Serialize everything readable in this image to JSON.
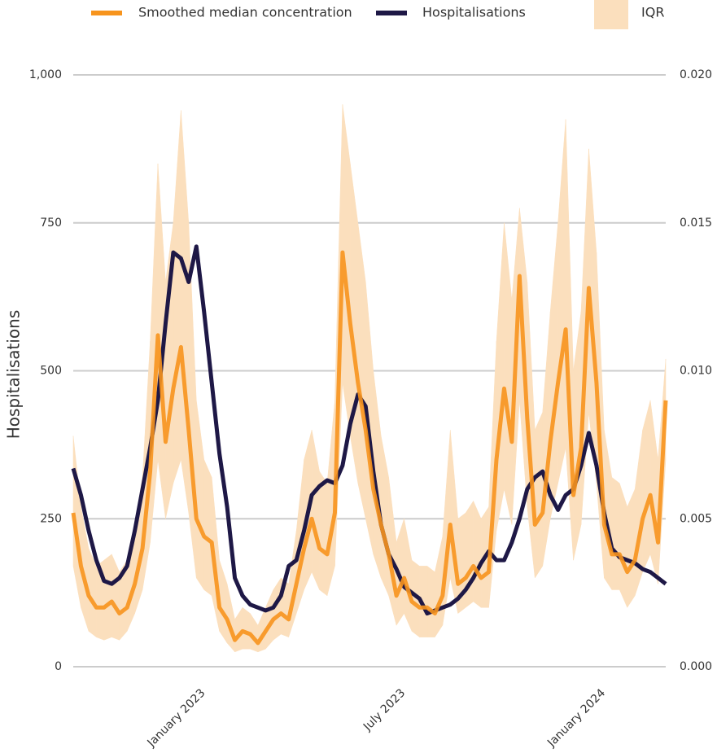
{
  "chart_data": {
    "type": "line",
    "ylabel": "Hospitalisations",
    "categories": [
      null,
      null,
      null,
      null,
      null,
      null,
      null,
      null,
      null,
      null,
      null,
      null,
      null,
      null,
      null,
      "January 2023",
      null,
      null,
      null,
      null,
      null,
      null,
      null,
      null,
      null,
      null,
      null,
      null,
      null,
      null,
      null,
      null,
      null,
      null,
      null,
      null,
      null,
      null,
      null,
      null,
      null,
      "July 2023",
      null,
      null,
      null,
      null,
      null,
      null,
      null,
      null,
      null,
      null,
      null,
      null,
      null,
      null,
      null,
      null,
      null,
      null,
      null,
      null,
      null,
      null,
      null,
      null,
      null,
      "January 2024",
      null,
      null,
      null,
      null,
      null,
      null,
      null,
      null,
      null,
      null
    ],
    "ylim": [
      0,
      1000
    ],
    "yticks": [
      0,
      250,
      500,
      750,
      {
        "value": 1000,
        "label": "1,000"
      }
    ],
    "y2lim": [
      0,
      0.02
    ],
    "y2ticks": [
      {
        "value": 0,
        "label": "0.000"
      },
      {
        "value": 0.005,
        "label": "0.005"
      },
      {
        "value": 0.01,
        "label": "0.010"
      },
      {
        "value": 0.015,
        "label": "0.015"
      },
      {
        "value": 0.02,
        "label": "0.020"
      }
    ],
    "grid": true,
    "iqr": {
      "name": "IQR",
      "color": "#fbdfbd",
      "axis": "y2",
      "low": [
        0.0034,
        0.002,
        0.0012,
        0.001,
        0.0009,
        0.001,
        0.0009,
        0.0012,
        0.0018,
        0.0026,
        0.0042,
        0.007,
        0.005,
        0.0062,
        0.007,
        0.0052,
        0.003,
        0.0026,
        0.0024,
        0.0012,
        0.0008,
        0.0005,
        0.0006,
        0.0006,
        0.0005,
        0.0006,
        0.0009,
        0.0011,
        0.001,
        0.0018,
        0.0026,
        0.0032,
        0.0026,
        0.0024,
        0.0034,
        0.0096,
        0.0078,
        0.0062,
        0.005,
        0.0038,
        0.003,
        0.0024,
        0.0014,
        0.0018,
        0.0012,
        0.001,
        0.001,
        0.001,
        0.0014,
        0.003,
        0.0018,
        0.002,
        0.0022,
        0.002,
        0.002,
        0.0046,
        0.006,
        0.0048,
        0.009,
        0.0054,
        0.003,
        0.0034,
        0.005,
        0.0062,
        0.0074,
        0.0036,
        0.0048,
        0.0086,
        0.0062,
        0.003,
        0.0026,
        0.0026,
        0.002,
        0.0024,
        0.0032,
        0.0038,
        0.0028,
        0.007
      ],
      "high": [
        0.0078,
        0.0054,
        0.004,
        0.0034,
        0.0036,
        0.0038,
        0.0032,
        0.0036,
        0.0048,
        0.0064,
        0.011,
        0.017,
        0.013,
        0.015,
        0.0188,
        0.015,
        0.009,
        0.007,
        0.0064,
        0.0036,
        0.0028,
        0.0016,
        0.002,
        0.0018,
        0.0014,
        0.002,
        0.0026,
        0.003,
        0.0028,
        0.0046,
        0.007,
        0.008,
        0.0066,
        0.0062,
        0.009,
        0.019,
        0.017,
        0.015,
        0.013,
        0.01,
        0.0078,
        0.0064,
        0.0042,
        0.005,
        0.0036,
        0.0034,
        0.0034,
        0.0032,
        0.0044,
        0.008,
        0.005,
        0.0052,
        0.0056,
        0.005,
        0.0054,
        0.011,
        0.015,
        0.0124,
        0.0155,
        0.013,
        0.008,
        0.0086,
        0.012,
        0.015,
        0.0185,
        0.01,
        0.012,
        0.0175,
        0.014,
        0.008,
        0.0064,
        0.0062,
        0.0054,
        0.006,
        0.008,
        0.009,
        0.007,
        0.0104
      ]
    },
    "series": [
      {
        "name": "Smoothed median concentration",
        "color": "#f7941d",
        "axis": "y2",
        "values": [
          0.0052,
          0.0034,
          0.0024,
          0.002,
          0.002,
          0.0022,
          0.0018,
          0.002,
          0.0028,
          0.004,
          0.0066,
          0.0112,
          0.0076,
          0.0094,
          0.0108,
          0.008,
          0.005,
          0.0044,
          0.0042,
          0.002,
          0.0016,
          0.0009,
          0.0012,
          0.0011,
          0.0008,
          0.0012,
          0.0016,
          0.0018,
          0.0016,
          0.0028,
          0.004,
          0.005,
          0.004,
          0.0038,
          0.0052,
          0.014,
          0.0116,
          0.0096,
          0.008,
          0.006,
          0.0048,
          0.0038,
          0.0024,
          0.003,
          0.0022,
          0.002,
          0.002,
          0.0018,
          0.0024,
          0.0048,
          0.0028,
          0.003,
          0.0034,
          0.003,
          0.0032,
          0.007,
          0.0094,
          0.0076,
          0.0132,
          0.0084,
          0.0048,
          0.0052,
          0.0076,
          0.0096,
          0.0114,
          0.0058,
          0.0074,
          0.0128,
          0.0096,
          0.0048,
          0.0038,
          0.0038,
          0.0032,
          0.0036,
          0.005,
          0.0058,
          0.0042,
          0.009
        ]
      },
      {
        "name": "Hospitalisations",
        "color": "#1e1846",
        "values": [
          335,
          290,
          230,
          180,
          145,
          140,
          150,
          170,
          230,
          300,
          370,
          450,
          580,
          700,
          690,
          650,
          710,
          600,
          480,
          360,
          270,
          150,
          120,
          105,
          100,
          95,
          100,
          120,
          170,
          180,
          230,
          290,
          305,
          315,
          310,
          340,
          410,
          460,
          440,
          330,
          240,
          190,
          165,
          135,
          125,
          115,
          90,
          95,
          100,
          105,
          115,
          130,
          150,
          175,
          195,
          180,
          180,
          210,
          250,
          300,
          320,
          330,
          290,
          265,
          290,
          300,
          340,
          395,
          340,
          260,
          200,
          185,
          180,
          175,
          165,
          160,
          150,
          140
        ]
      }
    ]
  }
}
